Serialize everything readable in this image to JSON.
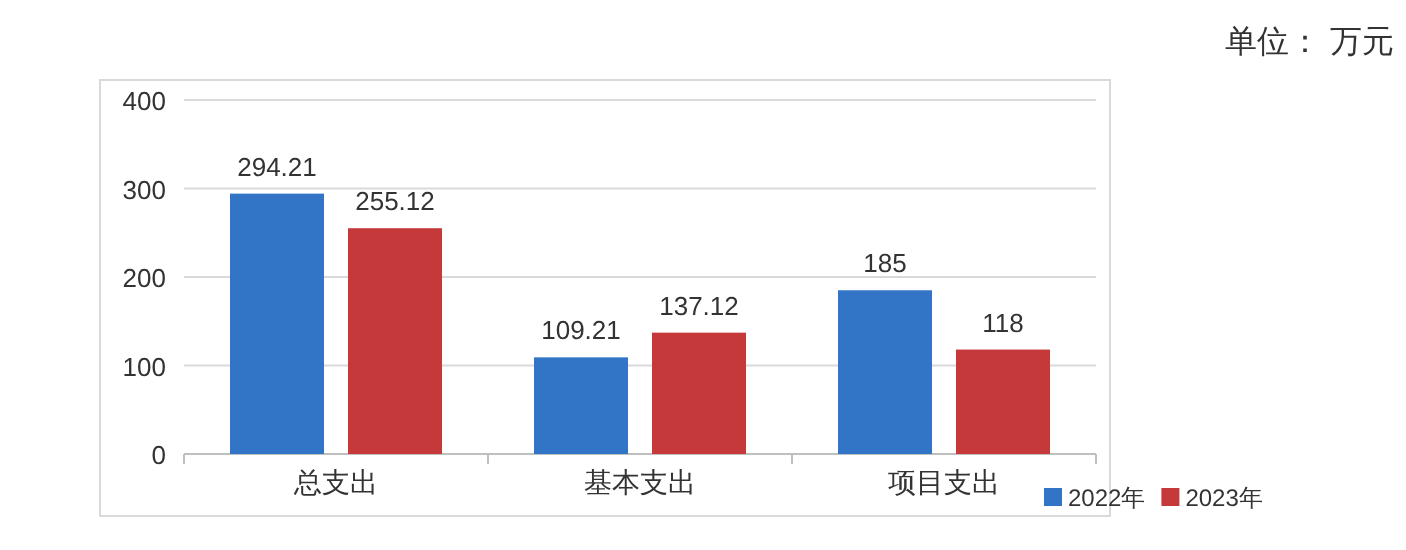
{
  "chart_data": {
    "type": "bar",
    "categories": [
      "总支出",
      "基本支出",
      "项目支出"
    ],
    "series": [
      {
        "name": "2022年",
        "color": "#3274c6",
        "values": [
          294.21,
          109.21,
          185
        ]
      },
      {
        "name": "2023年",
        "color": "#c6393a",
        "values": [
          255.12,
          137.12,
          118
        ]
      }
    ],
    "ylim": [
      0,
      400
    ],
    "yticks": [
      0,
      100,
      200,
      300,
      400
    ],
    "grid": "y",
    "legend": "bottom right",
    "data_labels": true,
    "annotations": [
      "单位：  万元"
    ]
  }
}
